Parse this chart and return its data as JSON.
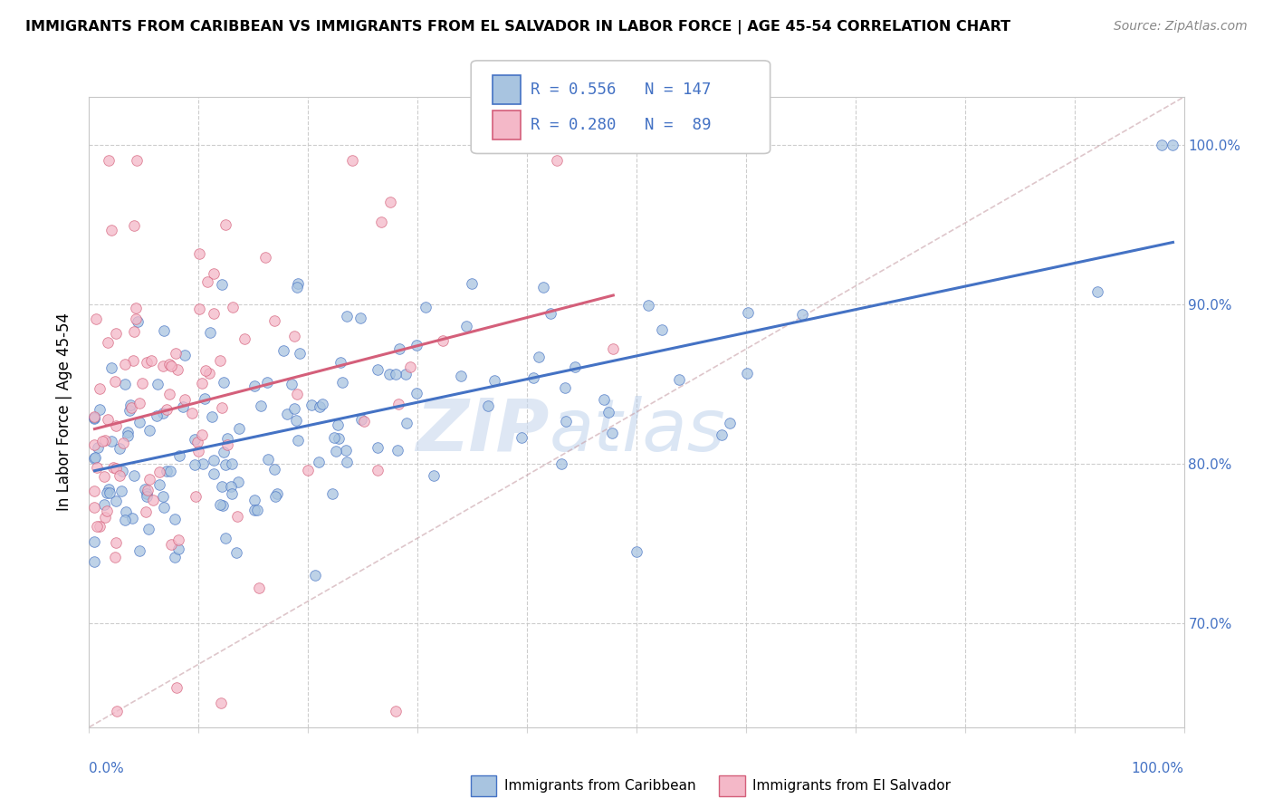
{
  "title": "IMMIGRANTS FROM CARIBBEAN VS IMMIGRANTS FROM EL SALVADOR IN LABOR FORCE | AGE 45-54 CORRELATION CHART",
  "source": "Source: ZipAtlas.com",
  "ylabel": "In Labor Force | Age 45-54",
  "color_caribbean": "#a8c4e0",
  "color_salvador": "#f4b8c8",
  "line_color_caribbean": "#4472c4",
  "line_color_salvador": "#d45f7a",
  "tick_color": "#4472c4",
  "R_caribbean": 0.556,
  "N_caribbean": 147,
  "R_salvador": 0.28,
  "N_salvador": 89,
  "xmin": 0.0,
  "xmax": 1.0,
  "ymin": 0.635,
  "ymax": 1.03,
  "yticks": [
    0.7,
    0.8,
    0.9,
    1.0
  ],
  "watermark_zip": "ZIP",
  "watermark_atlas": "atlas",
  "seed": 12345
}
